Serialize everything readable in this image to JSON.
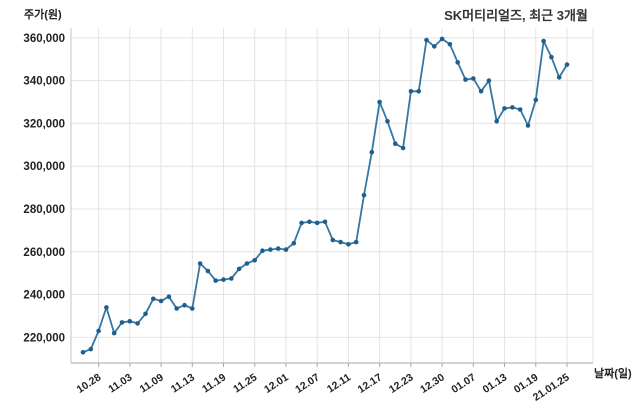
{
  "chart_data": {
    "type": "line",
    "title": "SK머티리얼즈, 최근 3개월",
    "y_axis_label": "주가(원)",
    "x_axis_label": "날짜(일)",
    "ylim": [
      208000,
      364600
    ],
    "y_ticks": [
      220000,
      240000,
      260000,
      280000,
      300000,
      320000,
      340000,
      360000
    ],
    "y_tick_labels": [
      "220,000",
      "240,000",
      "260,000",
      "280,000",
      "300,000",
      "320,000",
      "340,000",
      "360,000"
    ],
    "x_tick_labels": [
      "10.28",
      "11.03",
      "11.09",
      "11.13",
      "11.19",
      "11.25",
      "12.01",
      "12.07",
      "12.11",
      "12.17",
      "12.23",
      "12.30",
      "01.07",
      "01.13",
      "01.19",
      "21.01.25"
    ],
    "x_tick_point_indices": [
      2,
      6,
      10,
      14,
      18,
      22,
      26,
      30,
      34,
      38,
      42,
      46,
      50,
      54,
      58,
      62
    ],
    "values": [
      213000,
      214500,
      223000,
      234000,
      222000,
      227000,
      227500,
      226500,
      231000,
      238000,
      237000,
      239000,
      233500,
      235000,
      233500,
      254500,
      251000,
      246500,
      247000,
      247500,
      252000,
      254500,
      256000,
      260500,
      261000,
      261500,
      261000,
      264000,
      273500,
      274000,
      273500,
      274000,
      265500,
      264500,
      263500,
      264500,
      286500,
      306500,
      330000,
      321000,
      310500,
      308500,
      335000,
      335000,
      359000,
      356000,
      359500,
      357000,
      348500,
      340500,
      341000,
      335000,
      340000,
      321000,
      327000,
      327500,
      326500,
      319000,
      331000,
      358500,
      351000,
      341500,
      347500
    ],
    "grid": true,
    "legend": "none",
    "line_color": "#3577a2",
    "marker_color": "#205e8c",
    "grid_color": "#e4e4e4",
    "y_axis_color": "#c5c5c5",
    "x_axis_color": "#a6a6a6",
    "tick_text_color": "#222222",
    "title_color": "#333333"
  }
}
